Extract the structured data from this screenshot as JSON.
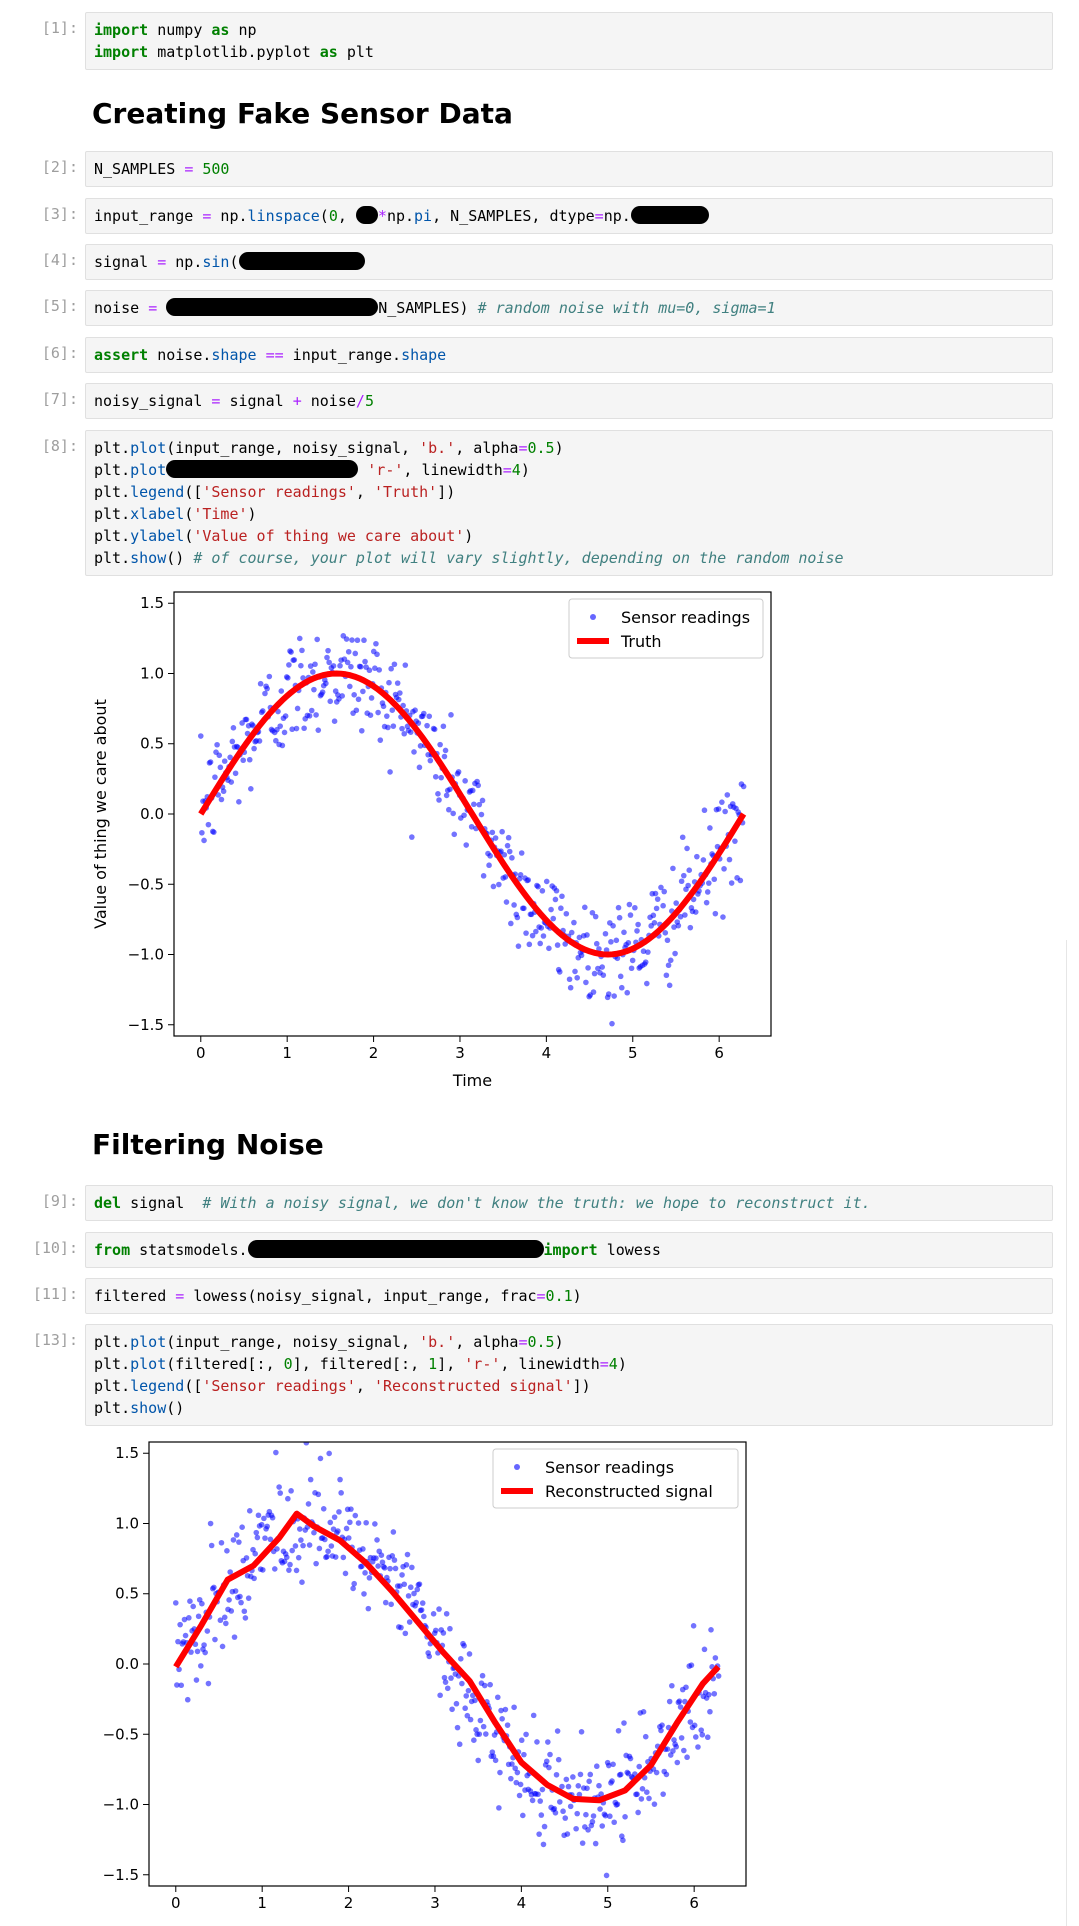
{
  "cells": {
    "c1": {
      "prompt": "[1]:",
      "lines": [
        [
          [
            "kw",
            "import"
          ],
          [
            "t",
            " numpy "
          ],
          [
            "kw",
            "as"
          ],
          [
            "t",
            " np"
          ]
        ],
        [
          [
            "kw",
            "import"
          ],
          [
            "t",
            " matplotlib.pyplot "
          ],
          [
            "kw",
            "as"
          ],
          [
            "t",
            " plt"
          ]
        ]
      ]
    },
    "c2": {
      "prompt": "[2]:",
      "lines": [
        [
          [
            "t",
            "N_SAMPLES "
          ],
          [
            "op",
            "="
          ],
          [
            "t",
            " "
          ],
          [
            "num",
            "500"
          ]
        ]
      ]
    },
    "c3": {
      "prompt": "[3]:",
      "lines": [
        [
          [
            "t",
            "input_range "
          ],
          [
            "op",
            "="
          ],
          [
            "t",
            " np."
          ],
          [
            "fn",
            "linspace"
          ],
          [
            "t",
            "("
          ],
          [
            "num",
            "0"
          ],
          [
            "t",
            ", "
          ],
          [
            "r",
            "22"
          ],
          [
            "op",
            "*"
          ],
          [
            "t",
            "np."
          ],
          [
            "fn",
            "pi"
          ],
          [
            "t",
            ", N_SAMPLES, dtype"
          ],
          [
            "op",
            "="
          ],
          [
            "t",
            "np."
          ],
          [
            "r",
            "78"
          ]
        ]
      ]
    },
    "c4": {
      "prompt": "[4]:",
      "lines": [
        [
          [
            "t",
            "signal "
          ],
          [
            "op",
            "="
          ],
          [
            "t",
            " np."
          ],
          [
            "fn",
            "sin"
          ],
          [
            "t",
            "("
          ],
          [
            "r",
            "126"
          ]
        ]
      ]
    },
    "c5": {
      "prompt": "[5]:",
      "lines": [
        [
          [
            "t",
            "noise "
          ],
          [
            "op",
            "="
          ],
          [
            "t",
            " "
          ],
          [
            "r",
            "212"
          ],
          [
            "t",
            "N_SAMPLES) "
          ],
          [
            "cm",
            "# random noise with mu=0, sigma=1"
          ]
        ]
      ]
    },
    "c6": {
      "prompt": "[6]:",
      "lines": [
        [
          [
            "kw",
            "assert"
          ],
          [
            "t",
            " noise."
          ],
          [
            "fn",
            "shape"
          ],
          [
            "t",
            " "
          ],
          [
            "op",
            "=="
          ],
          [
            "t",
            " input_range."
          ],
          [
            "fn",
            "shape"
          ]
        ]
      ]
    },
    "c7": {
      "prompt": "[7]:",
      "lines": [
        [
          [
            "t",
            "noisy_signal "
          ],
          [
            "op",
            "="
          ],
          [
            "t",
            " signal "
          ],
          [
            "op",
            "+"
          ],
          [
            "t",
            " noise"
          ],
          [
            "op",
            "/"
          ],
          [
            "num",
            "5"
          ]
        ]
      ]
    },
    "c8": {
      "prompt": "[8]:",
      "lines": [
        [
          [
            "t",
            "plt."
          ],
          [
            "fn",
            "plot"
          ],
          [
            "t",
            "(input_range, noisy_signal, "
          ],
          [
            "str",
            "'b.'"
          ],
          [
            "t",
            ", alpha"
          ],
          [
            "op",
            "="
          ],
          [
            "num",
            "0.5"
          ],
          [
            "t",
            ")"
          ]
        ],
        [
          [
            "t",
            "plt."
          ],
          [
            "fn",
            "plot"
          ],
          [
            "r",
            "192"
          ],
          [
            "t",
            " "
          ],
          [
            "str",
            "'r-'"
          ],
          [
            "t",
            ", linewidth"
          ],
          [
            "op",
            "="
          ],
          [
            "num",
            "4"
          ],
          [
            "t",
            ")"
          ]
        ],
        [
          [
            "t",
            "plt."
          ],
          [
            "fn",
            "legend"
          ],
          [
            "t",
            "(["
          ],
          [
            "str",
            "'Sensor readings'"
          ],
          [
            "t",
            ", "
          ],
          [
            "str",
            "'Truth'"
          ],
          [
            "t",
            "])"
          ]
        ],
        [
          [
            "t",
            "plt."
          ],
          [
            "fn",
            "xlabel"
          ],
          [
            "t",
            "("
          ],
          [
            "str",
            "'Time'"
          ],
          [
            "t",
            ")"
          ]
        ],
        [
          [
            "t",
            "plt."
          ],
          [
            "fn",
            "ylabel"
          ],
          [
            "t",
            "("
          ],
          [
            "str",
            "'Value of thing we care about'"
          ],
          [
            "t",
            ")"
          ]
        ],
        [
          [
            "t",
            "plt."
          ],
          [
            "fn",
            "show"
          ],
          [
            "t",
            "() "
          ],
          [
            "cm",
            "# of course, your plot will vary slightly, depending on the random noise"
          ]
        ]
      ]
    },
    "c9": {
      "prompt": "[9]:",
      "lines": [
        [
          [
            "kw",
            "del"
          ],
          [
            "t",
            " signal  "
          ],
          [
            "cm",
            "# With a noisy signal, we don't know the truth: we hope to reconstruct it."
          ]
        ]
      ]
    },
    "c10": {
      "prompt": "[10]:",
      "lines": [
        [
          [
            "kw",
            "from"
          ],
          [
            "t",
            " statsmodels."
          ],
          [
            "r",
            "296"
          ],
          [
            "kw",
            "import"
          ],
          [
            "t",
            " lowess"
          ]
        ]
      ]
    },
    "c11": {
      "prompt": "[11]:",
      "lines": [
        [
          [
            "t",
            "filtered "
          ],
          [
            "op",
            "="
          ],
          [
            "t",
            " lowess(noisy_signal, input_range, frac"
          ],
          [
            "op",
            "="
          ],
          [
            "num",
            "0.1"
          ],
          [
            "t",
            ")"
          ]
        ]
      ]
    },
    "c13": {
      "prompt": "[13]:",
      "lines": [
        [
          [
            "t",
            "plt."
          ],
          [
            "fn",
            "plot"
          ],
          [
            "t",
            "(input_range, noisy_signal, "
          ],
          [
            "str",
            "'b.'"
          ],
          [
            "t",
            ", alpha"
          ],
          [
            "op",
            "="
          ],
          [
            "num",
            "0.5"
          ],
          [
            "t",
            ")"
          ]
        ],
        [
          [
            "t",
            "plt."
          ],
          [
            "fn",
            "plot"
          ],
          [
            "t",
            "(filtered[:, "
          ],
          [
            "num",
            "0"
          ],
          [
            "t",
            "], filtered[:, "
          ],
          [
            "num",
            "1"
          ],
          [
            "t",
            "], "
          ],
          [
            "str",
            "'r-'"
          ],
          [
            "t",
            ", linewidth"
          ],
          [
            "op",
            "="
          ],
          [
            "num",
            "4"
          ],
          [
            "t",
            ")"
          ]
        ],
        [
          [
            "t",
            "plt."
          ],
          [
            "fn",
            "legend"
          ],
          [
            "t",
            "(["
          ],
          [
            "str",
            "'Sensor readings'"
          ],
          [
            "t",
            ", "
          ],
          [
            "str",
            "'Reconstructed signal'"
          ],
          [
            "t",
            "])"
          ]
        ],
        [
          [
            "t",
            "plt."
          ],
          [
            "fn",
            "show"
          ],
          [
            "t",
            "()"
          ]
        ]
      ]
    }
  },
  "headings": {
    "h1": "Creating Fake Sensor Data",
    "h2": "Filtering Noise"
  },
  "chart_data": [
    {
      "type": "scatter+line",
      "xlabel": "Time",
      "ylabel": "Value of thing we care about",
      "xlim": [
        -0.31,
        6.6
      ],
      "ylim": [
        -1.58,
        1.58
      ],
      "xticks": [
        0,
        1,
        2,
        3,
        4,
        5,
        6
      ],
      "yticks": [
        -1.5,
        -1.0,
        -0.5,
        0.0,
        0.5,
        1.0,
        1.5
      ],
      "legend": [
        "Sensor readings",
        "Truth"
      ],
      "legend_loc": "upper right",
      "series": [
        {
          "name": "Sensor readings",
          "style": "blue dots, alpha 0.5",
          "n": 500,
          "model": "sin(x)+noise/5"
        },
        {
          "name": "Truth",
          "style": "red line, width 4",
          "x": [
            0,
            0.5,
            1,
            1.5,
            2,
            2.5,
            3,
            3.5,
            4,
            4.5,
            5,
            5.5,
            6,
            6.28
          ],
          "y": [
            0,
            0.48,
            0.84,
            1.0,
            0.91,
            0.6,
            0.14,
            -0.35,
            -0.76,
            -0.98,
            -0.96,
            -0.71,
            -0.28,
            0.0
          ]
        }
      ]
    },
    {
      "type": "scatter+line",
      "xlim": [
        -0.31,
        6.6
      ],
      "ylim": [
        -1.58,
        1.58
      ],
      "xticks": [
        0,
        1,
        2,
        3,
        4,
        5,
        6
      ],
      "yticks": [
        -1.5,
        -1.0,
        -0.5,
        0.0,
        0.5,
        1.0,
        1.5
      ],
      "legend": [
        "Sensor readings",
        "Reconstructed signal"
      ],
      "legend_loc": "upper right",
      "series": [
        {
          "name": "Sensor readings",
          "style": "blue dots, alpha 0.5",
          "n": 500,
          "model": "sin(x)+noise/5"
        },
        {
          "name": "Reconstructed signal",
          "style": "red line, width 4",
          "x": [
            0,
            0.3,
            0.6,
            0.9,
            1.2,
            1.4,
            1.6,
            1.9,
            2.2,
            2.5,
            2.8,
            3.1,
            3.4,
            3.7,
            4.0,
            4.3,
            4.6,
            4.9,
            5.2,
            5.5,
            5.8,
            6.1,
            6.28
          ],
          "y": [
            -0.02,
            0.28,
            0.6,
            0.7,
            0.9,
            1.07,
            0.98,
            0.88,
            0.72,
            0.52,
            0.3,
            0.08,
            -0.12,
            -0.42,
            -0.7,
            -0.86,
            -0.96,
            -0.97,
            -0.9,
            -0.72,
            -0.42,
            -0.14,
            -0.02
          ]
        }
      ]
    }
  ],
  "colors": {
    "dots": "#0000ff",
    "line": "#ff0000"
  }
}
